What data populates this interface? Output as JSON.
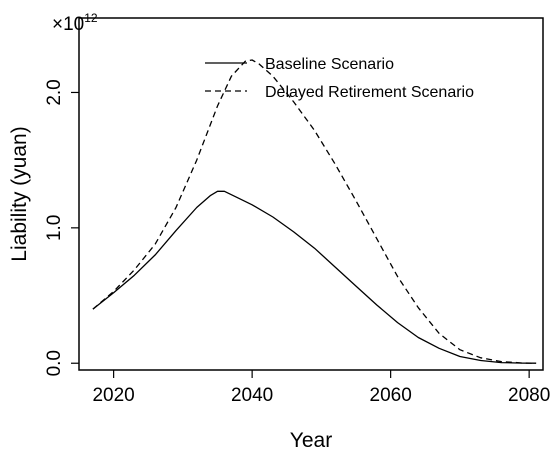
{
  "chart_data": {
    "type": "line",
    "title": "",
    "xlabel": "Year",
    "ylabel": "Liability (yuan)",
    "y_multiplier_base": "×10",
    "y_multiplier_exponent": "12",
    "xlim": [
      2015,
      2082
    ],
    "ylim": [
      -0.05,
      2.55
    ],
    "x_ticks": [
      2020,
      2040,
      2060,
      2080
    ],
    "x_tick_labels": [
      "2020",
      "2040",
      "2060",
      "2080"
    ],
    "y_ticks": [
      0.0,
      1.0,
      2.0
    ],
    "y_tick_labels": [
      "0.0",
      "1.0",
      "2.0"
    ],
    "legend_position": "top-right",
    "grid": false,
    "series": [
      {
        "name": "Baseline Scenario",
        "line_style": "solid",
        "color": "#000000",
        "x": [
          2017,
          2020,
          2023,
          2026,
          2029,
          2032,
          2034,
          2035,
          2036,
          2038,
          2040,
          2043,
          2046,
          2049,
          2052,
          2055,
          2058,
          2061,
          2064,
          2067,
          2070,
          2073,
          2076,
          2079,
          2081
        ],
        "y": [
          0.4,
          0.52,
          0.65,
          0.8,
          0.98,
          1.15,
          1.24,
          1.27,
          1.27,
          1.22,
          1.17,
          1.08,
          0.97,
          0.85,
          0.71,
          0.57,
          0.43,
          0.3,
          0.19,
          0.11,
          0.05,
          0.02,
          0.005,
          0.001,
          0.0
        ]
      },
      {
        "name": "Delayed Retirement Scenario",
        "line_style": "dashed",
        "color": "#000000",
        "x": [
          2017,
          2020,
          2023,
          2026,
          2029,
          2032,
          2035,
          2037,
          2039,
          2040,
          2041,
          2043,
          2046,
          2049,
          2052,
          2055,
          2058,
          2061,
          2064,
          2067,
          2070,
          2073,
          2076,
          2079,
          2081
        ],
        "y": [
          0.4,
          0.53,
          0.69,
          0.88,
          1.15,
          1.5,
          1.9,
          2.12,
          2.23,
          2.24,
          2.21,
          2.12,
          1.93,
          1.72,
          1.47,
          1.2,
          0.92,
          0.64,
          0.41,
          0.22,
          0.1,
          0.04,
          0.012,
          0.002,
          0.0
        ]
      }
    ]
  }
}
